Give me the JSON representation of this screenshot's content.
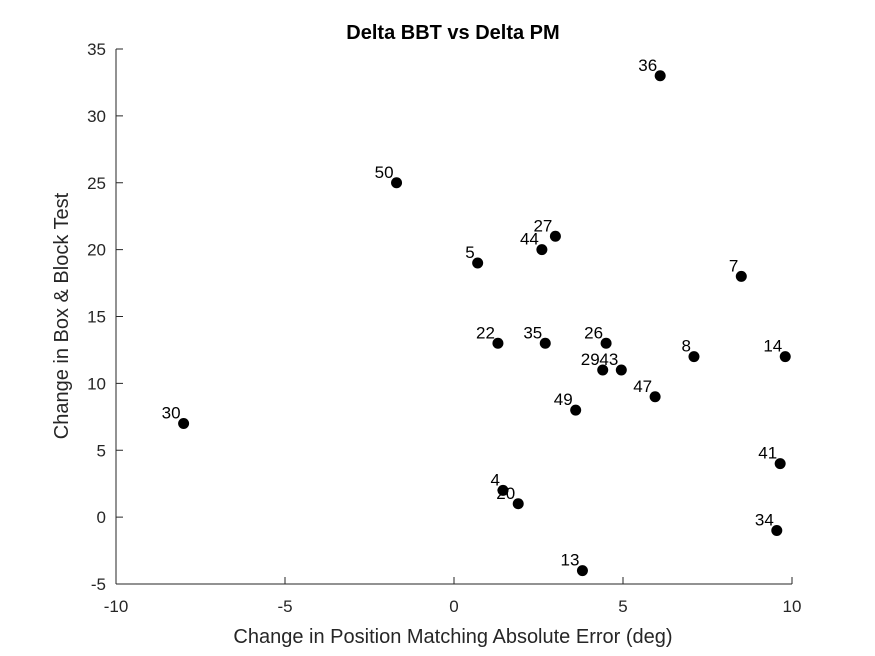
{
  "chart_data": {
    "type": "scatter",
    "title": "Delta BBT vs Delta PM",
    "xlabel": "Change in Position Matching Absolute Error (deg)",
    "ylabel": "Change in Box & Block Test",
    "xlim": [
      -10,
      10
    ],
    "ylim": [
      -5,
      35
    ],
    "xticks": [
      -10,
      -5,
      0,
      5,
      10
    ],
    "yticks": [
      -5,
      0,
      5,
      10,
      15,
      20,
      25,
      30,
      35
    ],
    "grid": false,
    "marker_color": "#000000",
    "points": [
      {
        "label": "36",
        "x": 6.1,
        "y": 33
      },
      {
        "label": "50",
        "x": -1.7,
        "y": 25
      },
      {
        "label": "27",
        "x": 3.0,
        "y": 21
      },
      {
        "label": "44",
        "x": 2.6,
        "y": 20
      },
      {
        "label": "5",
        "x": 0.7,
        "y": 19
      },
      {
        "label": "7",
        "x": 8.5,
        "y": 18
      },
      {
        "label": "22",
        "x": 1.3,
        "y": 13
      },
      {
        "label": "35",
        "x": 2.7,
        "y": 13
      },
      {
        "label": "26",
        "x": 4.5,
        "y": 13
      },
      {
        "label": "8",
        "x": 7.1,
        "y": 12
      },
      {
        "label": "14",
        "x": 9.8,
        "y": 12
      },
      {
        "label": "29",
        "x": 4.4,
        "y": 11
      },
      {
        "label": "43",
        "x": 4.95,
        "y": 11
      },
      {
        "label": "47",
        "x": 5.95,
        "y": 9
      },
      {
        "label": "49",
        "x": 3.6,
        "y": 8
      },
      {
        "label": "30",
        "x": -8.0,
        "y": 7
      },
      {
        "label": "41",
        "x": 9.65,
        "y": 4
      },
      {
        "label": "4",
        "x": 1.45,
        "y": 2
      },
      {
        "label": "20",
        "x": 1.9,
        "y": 1
      },
      {
        "label": "34",
        "x": 9.55,
        "y": -1
      },
      {
        "label": "13",
        "x": 3.8,
        "y": -4
      }
    ]
  }
}
